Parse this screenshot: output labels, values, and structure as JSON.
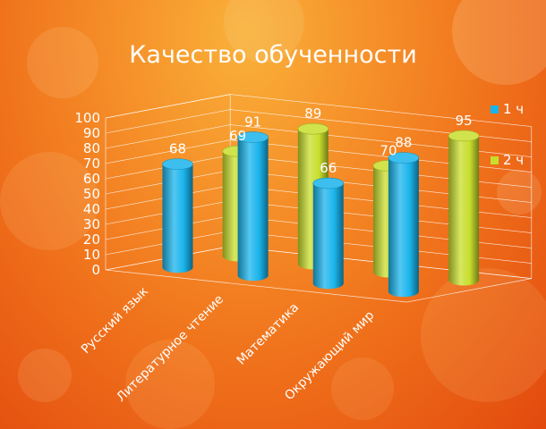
{
  "chart_data": {
    "type": "bar",
    "title": "Качество обученности",
    "categories": [
      "Русский язык",
      "Литературное чтение",
      "Математика",
      "Окружающий мир"
    ],
    "series": [
      {
        "name": "1 ч",
        "values": [
          68,
          91,
          66,
          88
        ],
        "color": "#1ab4ec"
      },
      {
        "name": "2 ч",
        "values": [
          69,
          89,
          70,
          95
        ],
        "color": "#c8de2c"
      }
    ],
    "ylim": [
      0,
      100
    ],
    "yticks": [
      "0",
      "10",
      "20",
      "30",
      "40",
      "50",
      "60",
      "70",
      "80",
      "90",
      "100"
    ],
    "style": "3d-cylinder",
    "grid": true,
    "legend_position": "right"
  }
}
